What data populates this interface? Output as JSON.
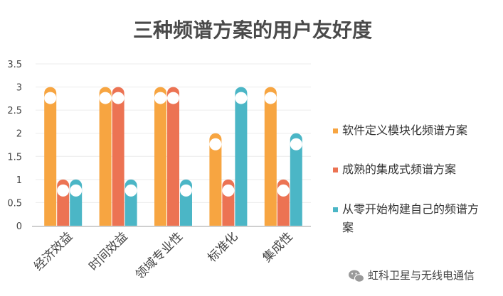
{
  "chart_data": {
    "type": "bar",
    "title": "三种频谱方案的用户友好度",
    "categories": [
      "经济效益",
      "时间效益",
      "领域专业性",
      "标准化",
      "集成性"
    ],
    "ylim": [
      0,
      3.5
    ],
    "yticks": [
      "0",
      "0.5",
      "1",
      "1.5",
      "2",
      "2.5",
      "3",
      "3.5"
    ],
    "grid": true,
    "legend_position": "right",
    "series": [
      {
        "name": "软件定义模块化频谱方案",
        "color": "#F7A541",
        "values": [
          3,
          3,
          3,
          2,
          3
        ]
      },
      {
        "name": "成熟的集成式频谱方案",
        "color": "#EC7353",
        "values": [
          1,
          3,
          3,
          1,
          1
        ]
      },
      {
        "name": "从零开始构建自己的频谱方案",
        "color": "#4BB6C6",
        "values": [
          1,
          1,
          1,
          3,
          2
        ]
      }
    ],
    "legend_lines": [
      [
        "软件定义模块化频谱方案"
      ],
      [
        "成熟的集成式频谱方案"
      ],
      [
        "从零开始构建自己的频谱方",
        "案"
      ]
    ]
  },
  "watermark": {
    "text": "虹科卫星与无线电通信",
    "icon": "wechat-icon"
  }
}
